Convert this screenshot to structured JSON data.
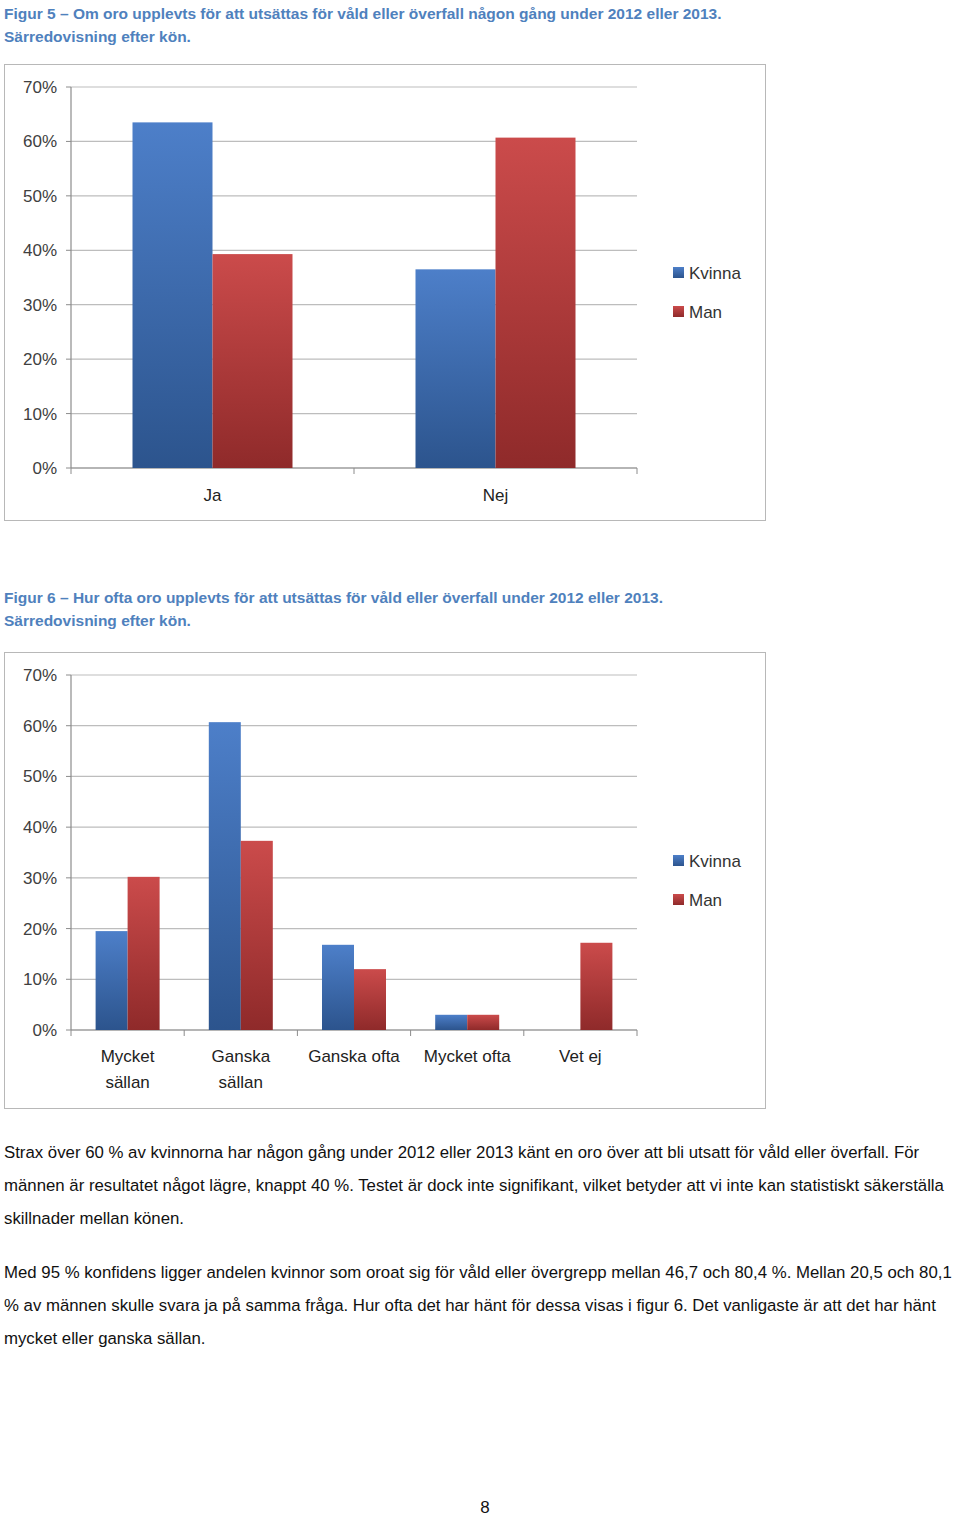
{
  "chart_data": [
    {
      "type": "bar",
      "title": "Figur 5 – Om oro upplevts för att utsättas för våld eller överfall någon gång under 2012 eller 2013. Särredovisning efter kön.",
      "categories": [
        "Ja",
        "Nej"
      ],
      "series": [
        {
          "name": "Kvinna",
          "color": "#3d74c4",
          "values": [
            63.5,
            36.5
          ]
        },
        {
          "name": "Man",
          "color": "#c63b3b",
          "values": [
            39.3,
            60.7
          ]
        }
      ],
      "ylim": [
        0,
        70
      ],
      "yticks": [
        {
          "value": 0,
          "label": "0%"
        },
        {
          "value": 10,
          "label": "10%"
        },
        {
          "value": 20,
          "label": "20%"
        },
        {
          "value": 30,
          "label": "30%"
        },
        {
          "value": 40,
          "label": "40%"
        },
        {
          "value": 50,
          "label": "50%"
        },
        {
          "value": 60,
          "label": "60%"
        },
        {
          "value": 70,
          "label": "70%"
        }
      ],
      "grid": true,
      "legend": "right"
    },
    {
      "type": "bar",
      "title": "Figur 6 – Hur ofta oro upplevts för att utsättas för våld eller överfall under 2012 eller 2013. Särredovisning efter kön.",
      "categories": [
        "Mycket sällan",
        "Ganska sällan",
        "Ganska ofta",
        "Mycket ofta",
        "Vet ej"
      ],
      "series": [
        {
          "name": "Kvinna",
          "color": "#3d74c4",
          "values": [
            19.5,
            60.7,
            16.8,
            3.0,
            0
          ]
        },
        {
          "name": "Man",
          "color": "#c63b3b",
          "values": [
            30.2,
            37.3,
            12.0,
            3.0,
            17.2
          ]
        }
      ],
      "ylim": [
        0,
        70
      ],
      "yticks": [
        {
          "value": 0,
          "label": "0%"
        },
        {
          "value": 10,
          "label": "10%"
        },
        {
          "value": 20,
          "label": "20%"
        },
        {
          "value": 30,
          "label": "30%"
        },
        {
          "value": 40,
          "label": "40%"
        },
        {
          "value": 50,
          "label": "50%"
        },
        {
          "value": 60,
          "label": "60%"
        },
        {
          "value": 70,
          "label": "70%"
        }
      ],
      "grid": true,
      "legend": "right"
    }
  ],
  "text": {
    "paragraphs": [
      "Strax över 60 % av kvinnorna har någon gång under 2012 eller 2013 känt en oro över att bli utsatt för våld eller överfall. För männen är resultatet något lägre, knappt 40 %. Testet är dock inte signifikant, vilket betyder att vi inte kan statistiskt säkerställa skillnader mellan könen.",
      "Med 95 % konfidens ligger andelen kvinnor som oroat sig för våld eller övergrepp mellan 46,7 och 80,4 %. Mellan 20,5 och 80,1 % av männen skulle svara ja på samma fråga. Hur ofta det har hänt för dessa visas i figur 6. Det vanligaste är att det har hänt mycket eller ganska sällan."
    ],
    "page_number": "8"
  }
}
